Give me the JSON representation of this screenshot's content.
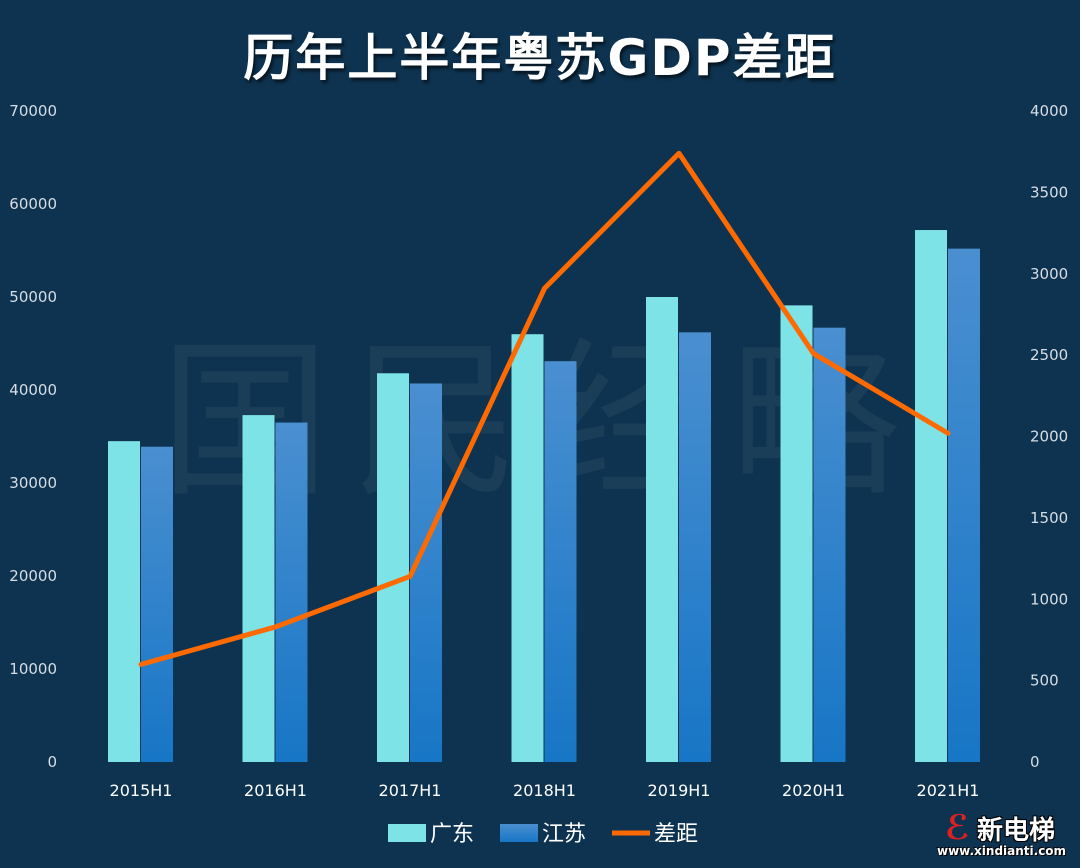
{
  "chart_data": {
    "type": "bar",
    "title": "历年上半年粤苏GDP差距",
    "categories": [
      "2015H1",
      "2016H1",
      "2017H1",
      "2018H1",
      "2019H1",
      "2020H1",
      "2021H1"
    ],
    "series": [
      {
        "name": "广东",
        "type": "bar",
        "axis": "left",
        "color": "#7de3e6",
        "values": [
          34500,
          37300,
          41800,
          46000,
          50000,
          49100,
          57200
        ]
      },
      {
        "name": "江苏",
        "type": "bar",
        "axis": "left",
        "color": "#2a86d0",
        "values": [
          33900,
          36500,
          40700,
          43100,
          46200,
          46700,
          55200
        ]
      },
      {
        "name": "差距",
        "type": "line",
        "axis": "right",
        "color": "#ff6a00",
        "values": [
          600,
          830,
          1140,
          2910,
          3740,
          2510,
          2020
        ]
      }
    ],
    "ylim_left": [
      0,
      70000
    ],
    "yticks_left": [
      "0",
      "10000",
      "20000",
      "30000",
      "40000",
      "50000",
      "60000",
      "70000"
    ],
    "ylim_right": [
      0,
      4000
    ],
    "yticks_right": [
      "0",
      "500",
      "1000",
      "1500",
      "2000",
      "2500",
      "3000",
      "3500",
      "4000"
    ],
    "grid": false,
    "legend": "bottom",
    "background": "#0e3350"
  },
  "watermark": "国民经略",
  "logo": {
    "name": "新电梯",
    "url": "www.xindianti.com"
  }
}
